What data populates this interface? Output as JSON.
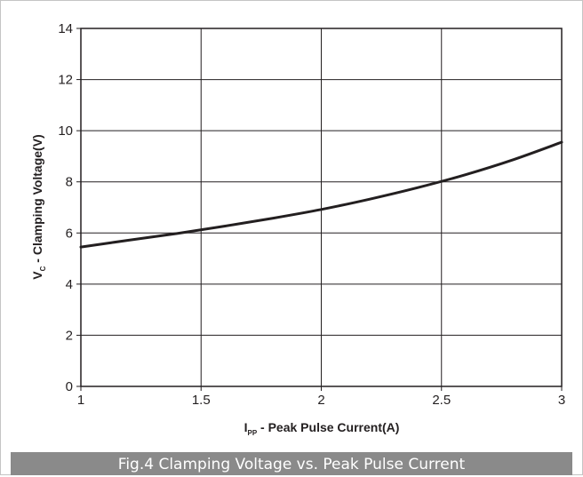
{
  "chart_data": {
    "type": "line",
    "title": "Fig.4 Clamping Voltage vs. Peak Pulse Current",
    "xlabel": {
      "symbol": "I",
      "subscript": "PP",
      "text": " - Peak Pulse Current(A)"
    },
    "ylabel": {
      "symbol": "V",
      "subscript": "C",
      "text": " - Clamping Voltage(V)"
    },
    "xlim": [
      1,
      3
    ],
    "ylim": [
      0,
      14
    ],
    "xticks": [
      "1",
      "1.5",
      "2",
      "2.5",
      "3"
    ],
    "yticks": [
      "0",
      "2",
      "4",
      "6",
      "8",
      "10",
      "12",
      "14"
    ],
    "grid": true,
    "line_color": "#231f20",
    "series": [
      {
        "x": [
          1.0,
          1.2,
          1.4,
          1.6,
          1.8,
          2.0,
          2.2,
          2.4,
          2.6,
          2.8,
          3.0
        ],
        "y": [
          5.45,
          5.72,
          5.98,
          6.27,
          6.58,
          6.92,
          7.32,
          7.77,
          8.28,
          8.87,
          9.55
        ]
      }
    ]
  }
}
